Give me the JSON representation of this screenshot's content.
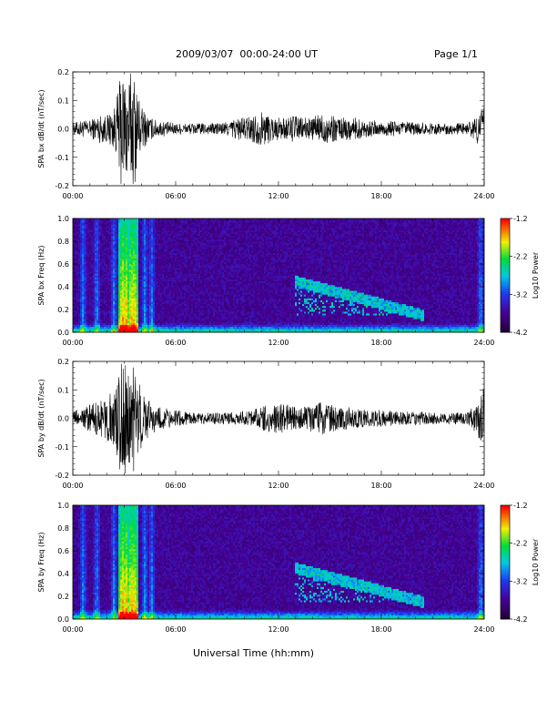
{
  "header": {
    "title": "2009/03/07  00:00-24:00 UT",
    "page": "Page 1/1"
  },
  "x_axis_label": "Universal Time (hh:mm)",
  "chart_data": [
    {
      "type": "line",
      "ylabel": "SPA bx dB/dt (nT/sec)",
      "xlim": [
        "00:00",
        "24:00"
      ],
      "ylim": [
        -0.2,
        0.2
      ],
      "xticks": [
        "00:00",
        "06:00",
        "12:00",
        "18:00",
        "24:00"
      ],
      "yticks": [
        "-0.2",
        "-0.1",
        "0.0",
        "0.1",
        "0.2"
      ],
      "activity_envelope": {
        "hours": [
          0,
          0.5,
          1,
          1.5,
          2,
          2.5,
          2.8,
          3.2,
          3.6,
          4,
          4.5,
          5,
          6,
          7,
          8,
          9,
          9.5,
          10,
          10.5,
          11,
          11.5,
          12,
          12.5,
          13,
          13.5,
          14,
          14.5,
          15,
          15.5,
          16,
          16.5,
          17,
          17.5,
          18,
          18.5,
          19,
          19.5,
          20,
          21,
          22,
          23,
          23.5,
          24
        ],
        "amplitude": [
          0.02,
          0.03,
          0.03,
          0.05,
          0.05,
          0.08,
          0.2,
          0.2,
          0.2,
          0.08,
          0.04,
          0.03,
          0.02,
          0.02,
          0.02,
          0.025,
          0.04,
          0.04,
          0.05,
          0.06,
          0.05,
          0.04,
          0.04,
          0.05,
          0.04,
          0.04,
          0.06,
          0.05,
          0.04,
          0.04,
          0.04,
          0.03,
          0.03,
          0.03,
          0.03,
          0.025,
          0.025,
          0.025,
          0.02,
          0.02,
          0.02,
          0.04,
          0.1
        ]
      }
    },
    {
      "type": "heatmap",
      "ylabel": "SPA bx Freq (Hz)",
      "xlim": [
        "00:00",
        "24:00"
      ],
      "ylim": [
        0.0,
        1.0
      ],
      "xticks": [
        "00:00",
        "06:00",
        "12:00",
        "18:00",
        "24:00"
      ],
      "yticks": [
        "0.0",
        "0.2",
        "0.4",
        "0.6",
        "0.8",
        "1.0"
      ],
      "colorbar": {
        "label": "Log10 Power",
        "ticks": [
          "-1.2",
          "-2.2",
          "-3.2",
          "-4.2"
        ],
        "range": [
          -4.2,
          -1.2
        ]
      },
      "features": {
        "broadband_bursts_hours": [
          0.6,
          1.4,
          2.4,
          2.9,
          3.1,
          3.4,
          3.6,
          4.2,
          4.6,
          23.8
        ],
        "pc1_band": {
          "start_hour": 13.0,
          "end_hour": 20.5,
          "freq_low": 0.15,
          "freq_high": 0.45
        }
      }
    },
    {
      "type": "line",
      "ylabel": "SPA by dB/dt (nT/sec)",
      "xlim": [
        "00:00",
        "24:00"
      ],
      "ylim": [
        -0.2,
        0.2
      ],
      "xticks": [
        "00:00",
        "06:00",
        "12:00",
        "18:00",
        "24:00"
      ],
      "yticks": [
        "-0.2",
        "-0.1",
        "0.0",
        "0.1",
        "0.2"
      ],
      "activity_envelope": {
        "hours": [
          0,
          0.5,
          1,
          1.5,
          2,
          2.5,
          2.8,
          3.2,
          3.6,
          4,
          4.5,
          5,
          6,
          7,
          8,
          9,
          10,
          10.5,
          11,
          11.5,
          12,
          12.5,
          13,
          13.5,
          14,
          14.5,
          15,
          15.5,
          16,
          17,
          18,
          19,
          20,
          21,
          22,
          23,
          23.5,
          24
        ],
        "amplitude": [
          0.03,
          0.03,
          0.05,
          0.06,
          0.08,
          0.1,
          0.2,
          0.2,
          0.2,
          0.1,
          0.06,
          0.04,
          0.03,
          0.02,
          0.02,
          0.02,
          0.025,
          0.03,
          0.04,
          0.05,
          0.06,
          0.05,
          0.04,
          0.04,
          0.05,
          0.06,
          0.05,
          0.04,
          0.04,
          0.03,
          0.03,
          0.025,
          0.025,
          0.02,
          0.02,
          0.02,
          0.05,
          0.12
        ]
      }
    },
    {
      "type": "heatmap",
      "ylabel": "SPA by Freq (Hz)",
      "xlim": [
        "00:00",
        "24:00"
      ],
      "ylim": [
        0.0,
        1.0
      ],
      "xticks": [
        "00:00",
        "06:00",
        "12:00",
        "18:00",
        "24:00"
      ],
      "yticks": [
        "0.0",
        "0.2",
        "0.4",
        "0.6",
        "0.8",
        "1.0"
      ],
      "colorbar": {
        "label": "Log10 Power",
        "ticks": [
          "-1.2",
          "-2.2",
          "-3.2",
          "-4.2"
        ],
        "range": [
          -4.2,
          -1.2
        ]
      },
      "features": {
        "broadband_bursts_hours": [
          0.6,
          1.4,
          2.4,
          2.9,
          3.1,
          3.4,
          3.6,
          4.2,
          4.6,
          23.8
        ],
        "pc1_band": {
          "start_hour": 13.0,
          "end_hour": 20.5,
          "freq_low": 0.15,
          "freq_high": 0.45
        }
      }
    }
  ]
}
